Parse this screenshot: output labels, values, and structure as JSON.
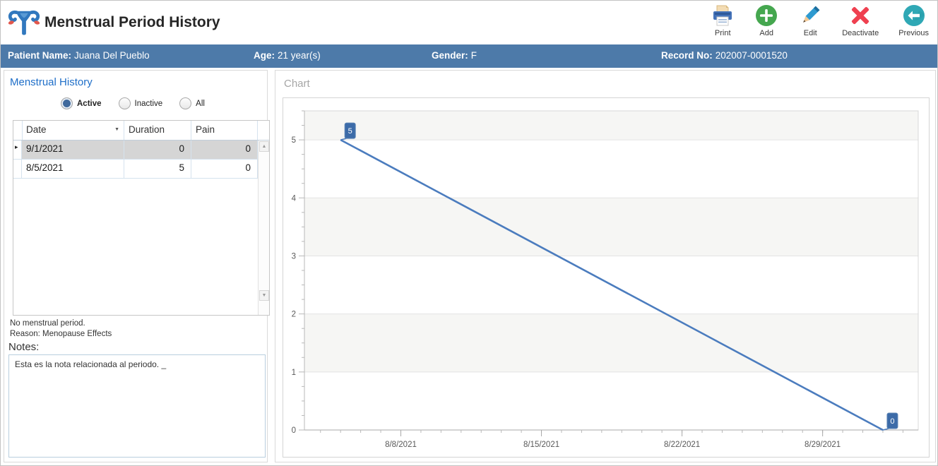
{
  "header": {
    "title": "Menstrual Period History",
    "toolbar": [
      {
        "label": "Print"
      },
      {
        "label": "Add"
      },
      {
        "label": "Edit"
      },
      {
        "label": "Deactivate"
      },
      {
        "label": "Previous"
      }
    ]
  },
  "patient_bar": {
    "name_label": "Patient Name:",
    "name": "Juana Del Pueblo",
    "age_label": "Age:",
    "age": "21 year(s)",
    "gender_label": "Gender:",
    "gender": "F",
    "record_label": "Record No:",
    "record": "202007-0001520"
  },
  "left_panel": {
    "title": "Menstrual History",
    "filters": [
      {
        "label": "Active",
        "selected": true
      },
      {
        "label": "Inactive",
        "selected": false
      },
      {
        "label": "All",
        "selected": false
      }
    ],
    "table": {
      "columns": [
        "Date",
        "Duration",
        "Pain"
      ],
      "rows": [
        {
          "date": "9/1/2021",
          "duration": "0",
          "pain": "0",
          "selected": true
        },
        {
          "date": "8/5/2021",
          "duration": "5",
          "pain": "0",
          "selected": false
        }
      ]
    },
    "status_line1": "No menstrual period.",
    "status_line2": "Reason: Menopause Effects",
    "notes_label": "Notes:",
    "notes_text": "Esta es la nota relacionada al periodo. _"
  },
  "chart_panel": {
    "title": "Chart"
  },
  "chart_data": {
    "type": "line",
    "title": "Chart",
    "xlabel": "",
    "ylabel": "",
    "legend": "none",
    "grid": true,
    "line_color": "#4b7cbe",
    "label_bg": "#3c6ba8",
    "band_color": "#f6f6f4",
    "x_axis": {
      "start_date": "8/3/2021",
      "total_days": 30.56,
      "tick_labels": [
        {
          "label": "8/8/2021",
          "day": 4.8
        },
        {
          "label": "8/15/2021",
          "day": 11.8
        },
        {
          "label": "8/22/2021",
          "day": 18.8
        },
        {
          "label": "8/29/2021",
          "day": 25.8
        }
      ],
      "minor_tick_start": 0.8,
      "minor_tick_step": 1
    },
    "y_axis": {
      "min": 0,
      "max": 5.5,
      "major_labels": [
        0,
        1,
        2,
        3,
        4,
        5
      ],
      "minor_step": 0.25,
      "bands": [
        [
          1,
          2
        ],
        [
          3,
          4
        ],
        [
          5,
          5.5
        ]
      ]
    },
    "series": [
      {
        "name": "Duration",
        "points": [
          {
            "date": "8/5/2021",
            "day": 1.8,
            "value": 5,
            "label": "5"
          },
          {
            "date": "9/1/2021",
            "day": 28.8,
            "value": 0,
            "label": "0"
          }
        ]
      }
    ]
  }
}
